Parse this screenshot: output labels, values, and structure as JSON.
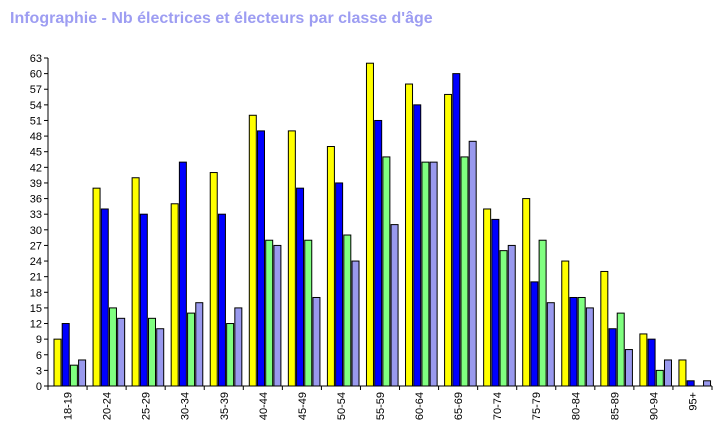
{
  "title": "Infographie - Nb électrices et électeurs par classe d'âge",
  "chart_data": {
    "type": "bar",
    "title": "Infographie - Nb électrices et électeurs par classe d'âge",
    "xlabel": "",
    "ylabel": "",
    "ylim": [
      0,
      63
    ],
    "yticks": [
      0,
      3,
      6,
      9,
      12,
      15,
      18,
      21,
      24,
      27,
      30,
      33,
      36,
      39,
      42,
      45,
      48,
      51,
      54,
      57,
      60,
      63
    ],
    "grid": false,
    "categories": [
      "18-19",
      "20-24",
      "25-29",
      "30-34",
      "35-39",
      "40-44",
      "45-49",
      "50-54",
      "55-59",
      "60-64",
      "65-69",
      "70-74",
      "75-79",
      "80-84",
      "85-89",
      "90-94",
      "95+"
    ],
    "series": [
      {
        "color": "#ffff00",
        "values": [
          9,
          38,
          40,
          35,
          41,
          52,
          49,
          46,
          62,
          58,
          56,
          34,
          36,
          24,
          22,
          10,
          5
        ]
      },
      {
        "color": "#0000ff",
        "values": [
          12,
          34,
          33,
          43,
          33,
          49,
          38,
          39,
          51,
          54,
          60,
          32,
          20,
          17,
          11,
          9,
          1
        ]
      },
      {
        "color": "#80ff80",
        "values": [
          4,
          15,
          13,
          14,
          12,
          28,
          28,
          29,
          44,
          43,
          44,
          26,
          28,
          17,
          14,
          3,
          0
        ]
      },
      {
        "color": "#9999ee",
        "values": [
          5,
          13,
          11,
          16,
          15,
          27,
          17,
          24,
          31,
          43,
          47,
          27,
          16,
          15,
          7,
          5,
          1
        ]
      }
    ]
  }
}
